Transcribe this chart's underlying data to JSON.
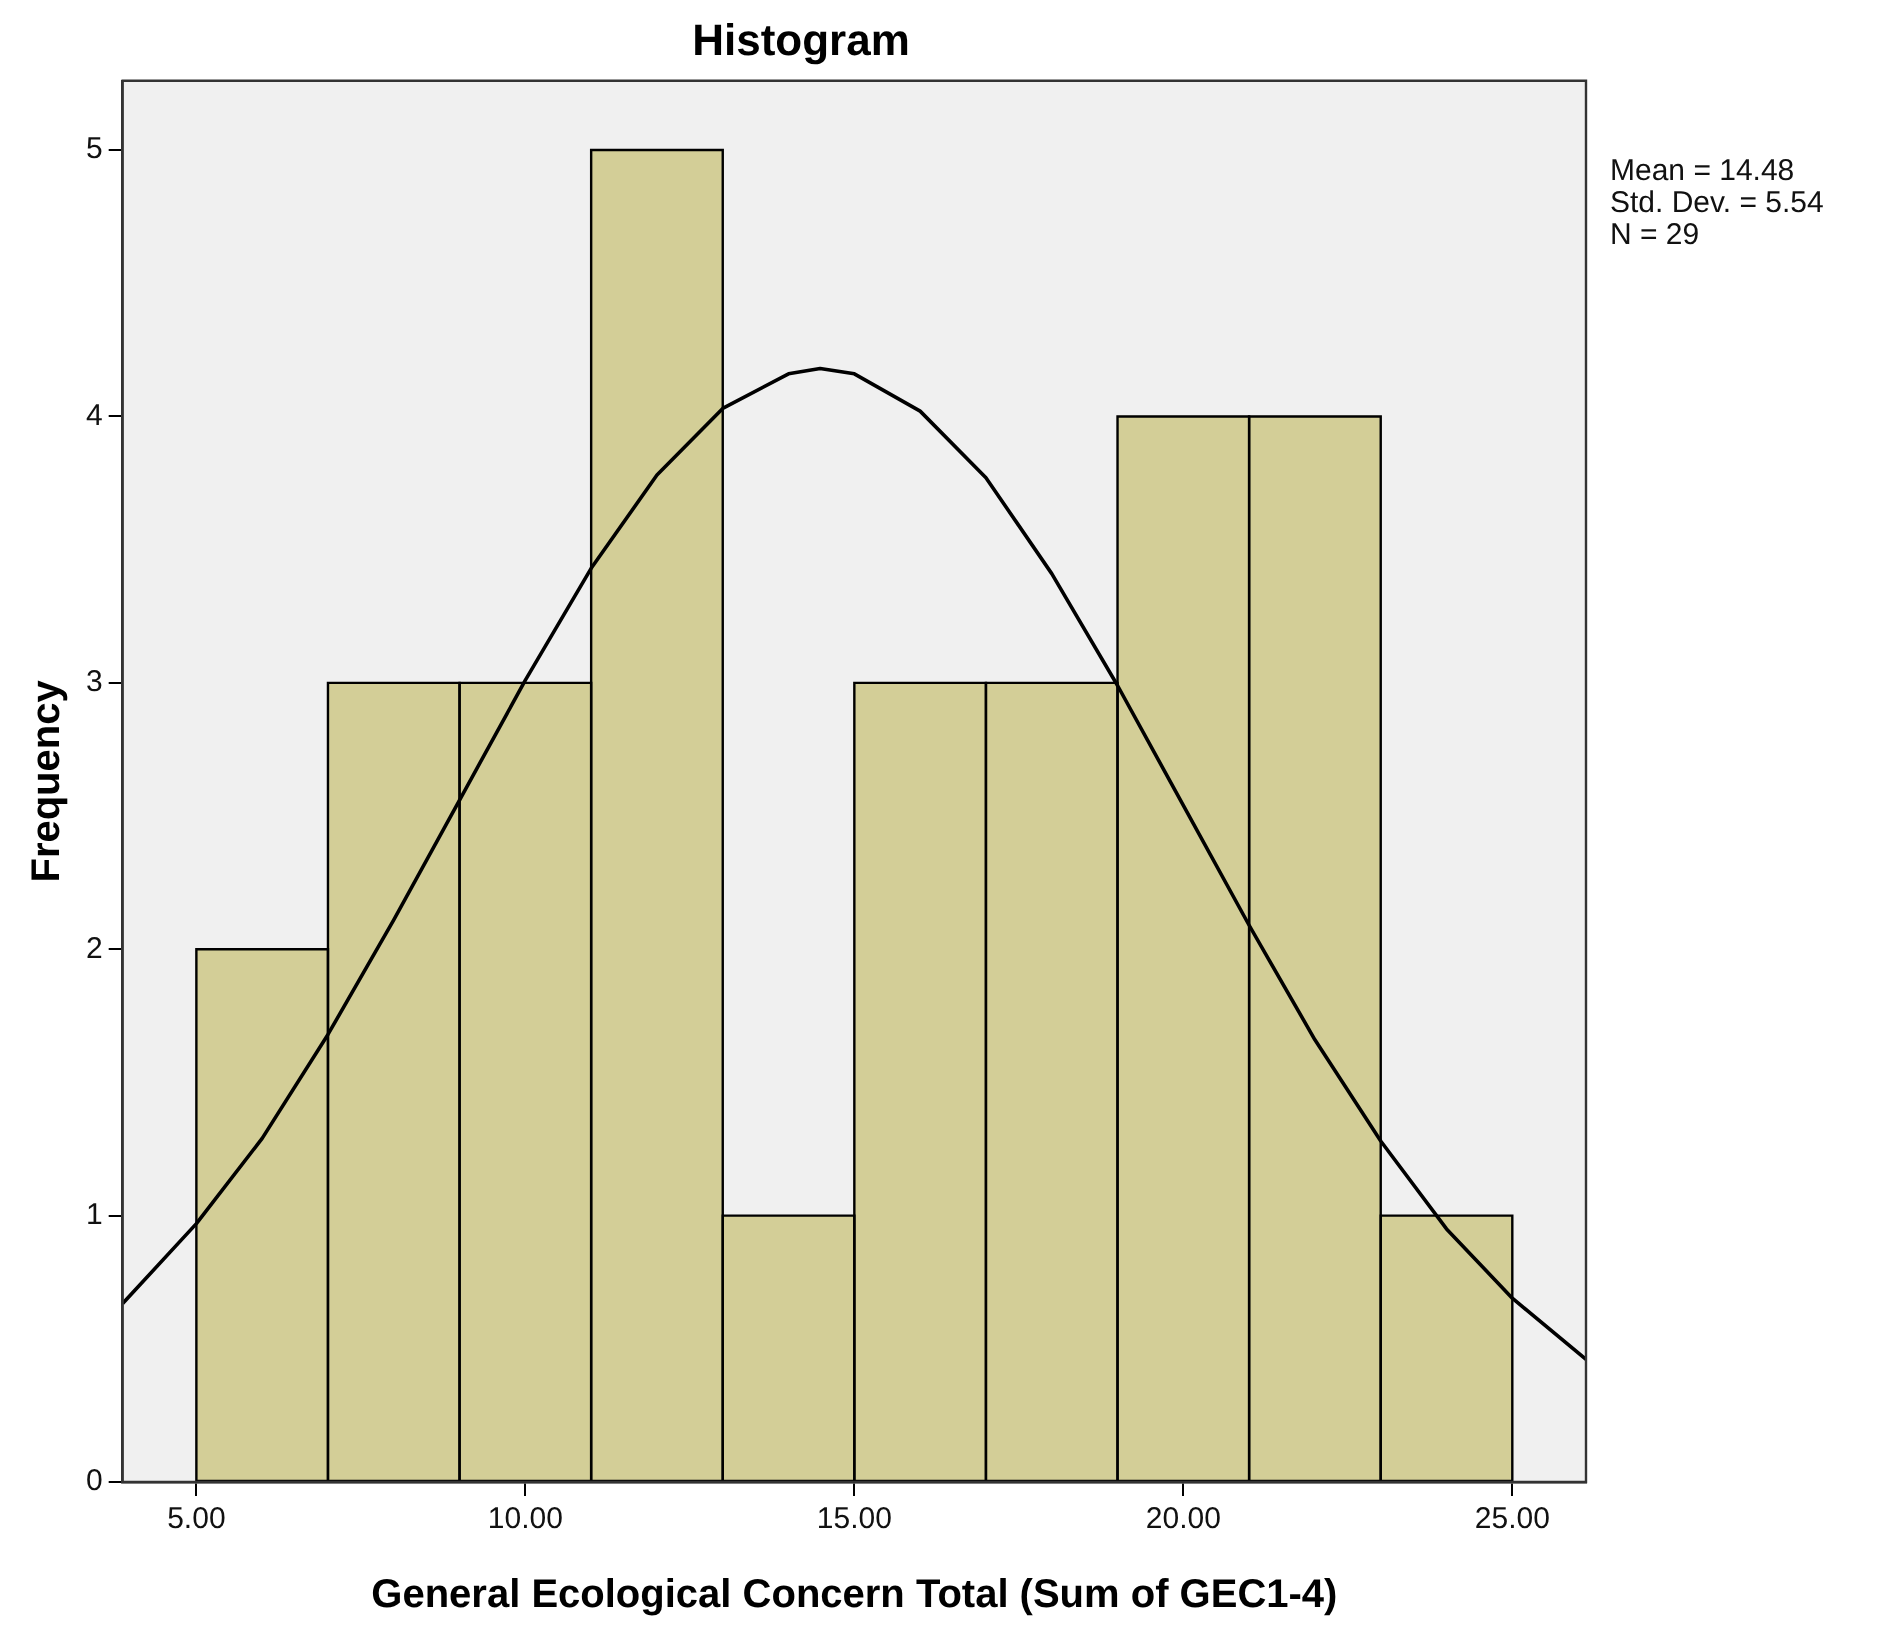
{
  "chart_data": {
    "type": "histogram",
    "title": "Histogram",
    "xlabel": "General Ecological Concern Total (Sum of GEC1-4)",
    "ylabel": "Frequency",
    "bins": [
      5,
      7,
      9,
      11,
      13,
      15,
      17,
      19,
      21,
      23,
      25
    ],
    "values": [
      2,
      3,
      3,
      5,
      1,
      3,
      3,
      4,
      4,
      1
    ],
    "color": "#d3ce97",
    "series": [
      {
        "type": "line",
        "color": "#000000",
        "x": [
          3.88,
          5,
          6,
          7,
          8,
          9,
          10,
          11,
          12,
          13,
          14,
          14.48,
          15,
          16,
          17,
          18,
          19,
          20,
          21,
          22,
          23,
          24,
          25,
          26.12
        ],
        "values": [
          0.67,
          0.97,
          1.29,
          1.68,
          2.11,
          2.56,
          3.01,
          3.43,
          3.78,
          4.03,
          4.16,
          4.18,
          4.16,
          4.02,
          3.77,
          3.41,
          2.99,
          2.54,
          2.09,
          1.66,
          1.28,
          0.95,
          0.69,
          0.46
        ]
      }
    ],
    "xlim": [
      3.88,
      26.12
    ],
    "xticks": [
      {
        "value": 5,
        "label": "5.00"
      },
      {
        "value": 10,
        "label": "10.00"
      },
      {
        "value": 15,
        "label": "15.00"
      },
      {
        "value": 20,
        "label": "20.00"
      },
      {
        "value": 25,
        "label": "25.00"
      }
    ],
    "ylim": [
      0,
      5.26
    ],
    "yticks": [
      0,
      1,
      2,
      3,
      4,
      5
    ],
    "legend": false,
    "marker": "none",
    "annotations": [
      "Mean = 14.48",
      "Std. Dev. = 5.54",
      "N = 29"
    ]
  }
}
